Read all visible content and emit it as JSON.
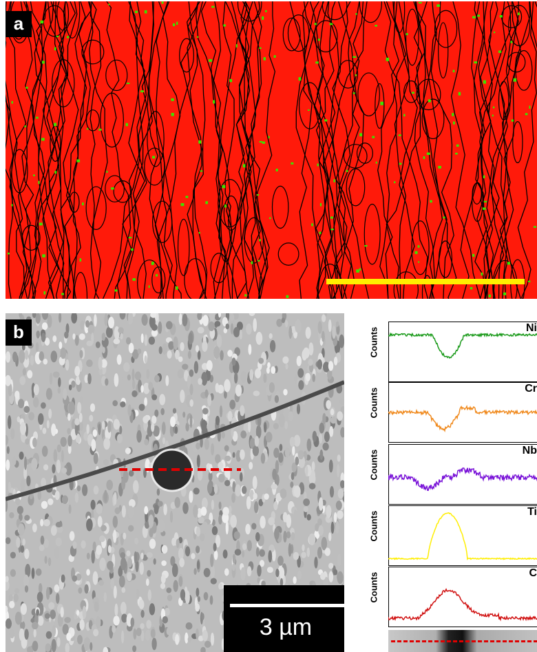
{
  "panel_a": {
    "label": "a",
    "colors": {
      "background": "#ff1a0a",
      "boundaries": "#000000",
      "secondary_phase": "#39e600",
      "scale_bar": "#ffee00"
    }
  },
  "panel_b": {
    "label": "b",
    "scale_bar_text": "3 µm",
    "colors": {
      "line_scan": "#e00000"
    }
  },
  "profiles": {
    "y_axis_label": "Counts",
    "series": [
      {
        "name": "Ni",
        "color": "#1a9a1a"
      },
      {
        "name": "Cr",
        "color": "#f08a1e"
      },
      {
        "name": "Nb",
        "color": "#7a14d8"
      },
      {
        "name": "Ti",
        "color": "#ffee00"
      },
      {
        "name": "C",
        "color": "#d01010"
      }
    ]
  }
}
